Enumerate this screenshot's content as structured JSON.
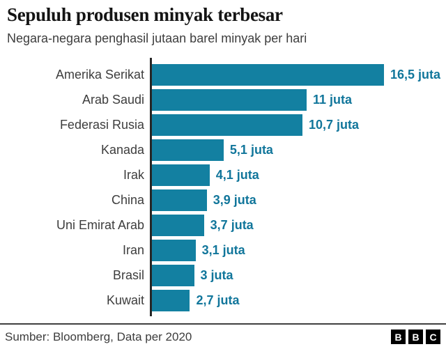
{
  "header": {
    "title": "Sepuluh produsen minyak terbesar",
    "subtitle": "Negara-negara penghasil jutaan barel minyak per hari"
  },
  "chart_data": {
    "type": "bar",
    "orientation": "horizontal",
    "title": "Sepuluh produsen minyak terbesar",
    "subtitle": "Negara-negara penghasil jutaan barel minyak per hari",
    "categories": [
      "Amerika Serikat",
      "Arab Saudi",
      "Federasi Rusia",
      "Kanada",
      "Irak",
      "China",
      "Uni Emirat Arab",
      "Iran",
      "Brasil",
      "Kuwait"
    ],
    "values": [
      16.5,
      11,
      10.7,
      5.1,
      4.1,
      3.9,
      3.7,
      3.1,
      3,
      2.7
    ],
    "value_labels": [
      "16,5 juta",
      "11 juta",
      "10,7 juta",
      "5,1 juta",
      "4,1 juta",
      "3,9 juta",
      "3,7 juta",
      "3,1 juta",
      "3 juta",
      "2,7 juta"
    ],
    "xlim": [
      0,
      16.5
    ],
    "grid": false,
    "legend": false,
    "bar_color": "#1380A1",
    "value_label_color": "#11769B",
    "axis_color": "#262626"
  },
  "footer": {
    "source": "Sumber: Bloomberg, Data per 2020",
    "logo_letters": [
      "B",
      "B",
      "C"
    ]
  }
}
